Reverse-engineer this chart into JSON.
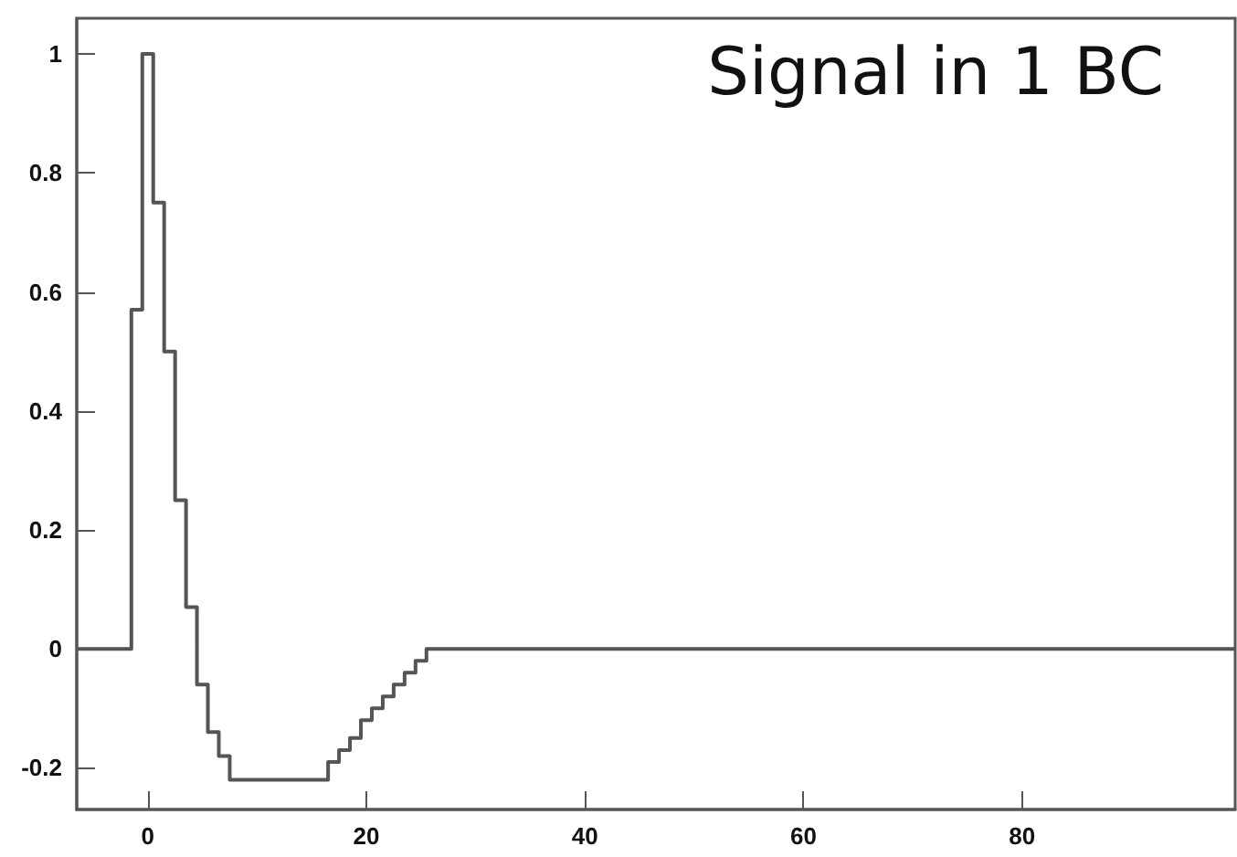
{
  "chart_data": {
    "type": "step",
    "annotations": [
      "Signal in 1 BC"
    ],
    "x": [
      -6.5,
      -1.5,
      -0.5,
      0.5,
      1.5,
      2.5,
      3.5,
      4.5,
      5.5,
      6.5,
      7.5,
      16.5,
      17.5,
      18.5,
      19.5,
      20.5,
      21.5,
      22.5,
      23.5,
      24.5,
      25.5,
      99.5
    ],
    "series": [
      {
        "color": "#555555",
        "values": [
          0,
          0.57,
          1,
          0.75,
          0.5,
          0.25,
          0.07,
          -0.06,
          -0.14,
          -0.18,
          -0.22,
          -0.19,
          -0.17,
          -0.15,
          -0.12,
          -0.1,
          -0.08,
          -0.06,
          -0.04,
          -0.02,
          0,
          0
        ]
      }
    ],
    "xlim": [
      -6.5,
      99.5
    ],
    "xticks": [
      0,
      20,
      40,
      60,
      80
    ],
    "ylim": [
      -0.27,
      1.06
    ],
    "yticks": [
      -0.2,
      0,
      0.2,
      0.4,
      0.6,
      0.8,
      1
    ],
    "grid": false,
    "marker": "none",
    "line_style": "solid"
  }
}
